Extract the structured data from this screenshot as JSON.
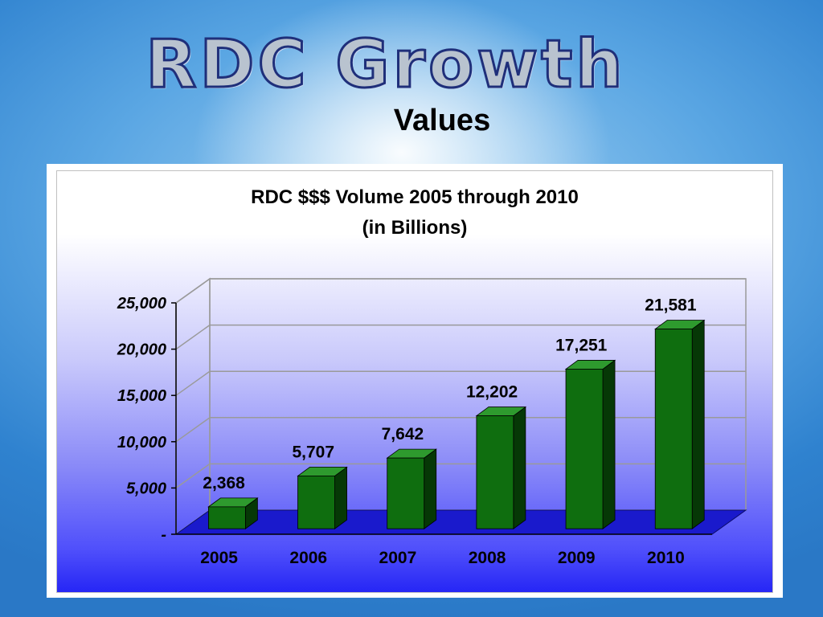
{
  "slide": {
    "title": "RDC Growth",
    "subtitle": "Values"
  },
  "chart_data": {
    "type": "bar",
    "title": "RDC $$$ Volume 2005 through 2010",
    "subtitle": "(in Billions)",
    "categories": [
      "2005",
      "2006",
      "2007",
      "2008",
      "2009",
      "2010"
    ],
    "values": [
      2368,
      5707,
      7642,
      12202,
      17251,
      21581
    ],
    "data_labels": [
      "2,368",
      "5,707",
      "7,642",
      "12,202",
      "17,251",
      "21,581"
    ],
    "yticks": [
      "-",
      "5,000",
      "10,000",
      "15,000",
      "20,000",
      "25,000"
    ],
    "ylim": [
      0,
      25000
    ],
    "xlabel": "",
    "ylabel": "",
    "grid": true,
    "style": "3d",
    "colors": {
      "bar_front": "#0f6e0f",
      "bar_top": "#2e9a2e",
      "bar_side": "#063806",
      "floor": "#1a1acc",
      "grid": "#9a9a9a"
    }
  }
}
